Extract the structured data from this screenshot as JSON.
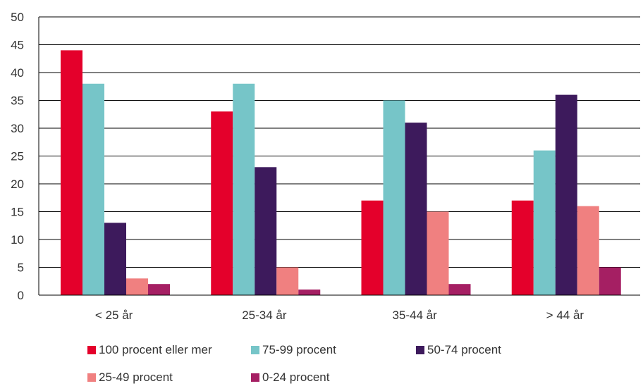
{
  "chart_data": {
    "type": "bar",
    "categories": [
      "< 25 år",
      "25-34 år",
      "35-44 år",
      "> 44 år"
    ],
    "series": [
      {
        "name": "100 procent eller mer",
        "color": "#e4002b",
        "values": [
          44,
          33,
          17,
          17
        ]
      },
      {
        "name": "75-99 procent",
        "color": "#76c5c8",
        "values": [
          38,
          38,
          35,
          26
        ]
      },
      {
        "name": "50-74 procent",
        "color": "#3d1a5c",
        "values": [
          13,
          23,
          31,
          36
        ]
      },
      {
        "name": "25-49 procent",
        "color": "#f08080",
        "values": [
          3,
          5,
          15,
          16
        ]
      },
      {
        "name": "0-24 procent",
        "color": "#a51f63",
        "values": [
          2,
          1,
          2,
          5
        ]
      }
    ],
    "y_ticks": [
      "0",
      "5",
      "10",
      "15",
      "20",
      "25",
      "30",
      "35",
      "40",
      "45",
      "50"
    ],
    "ylim": [
      0,
      50
    ],
    "grid": true,
    "legend_position": "bottom",
    "title": "",
    "xlabel": "",
    "ylabel": ""
  }
}
